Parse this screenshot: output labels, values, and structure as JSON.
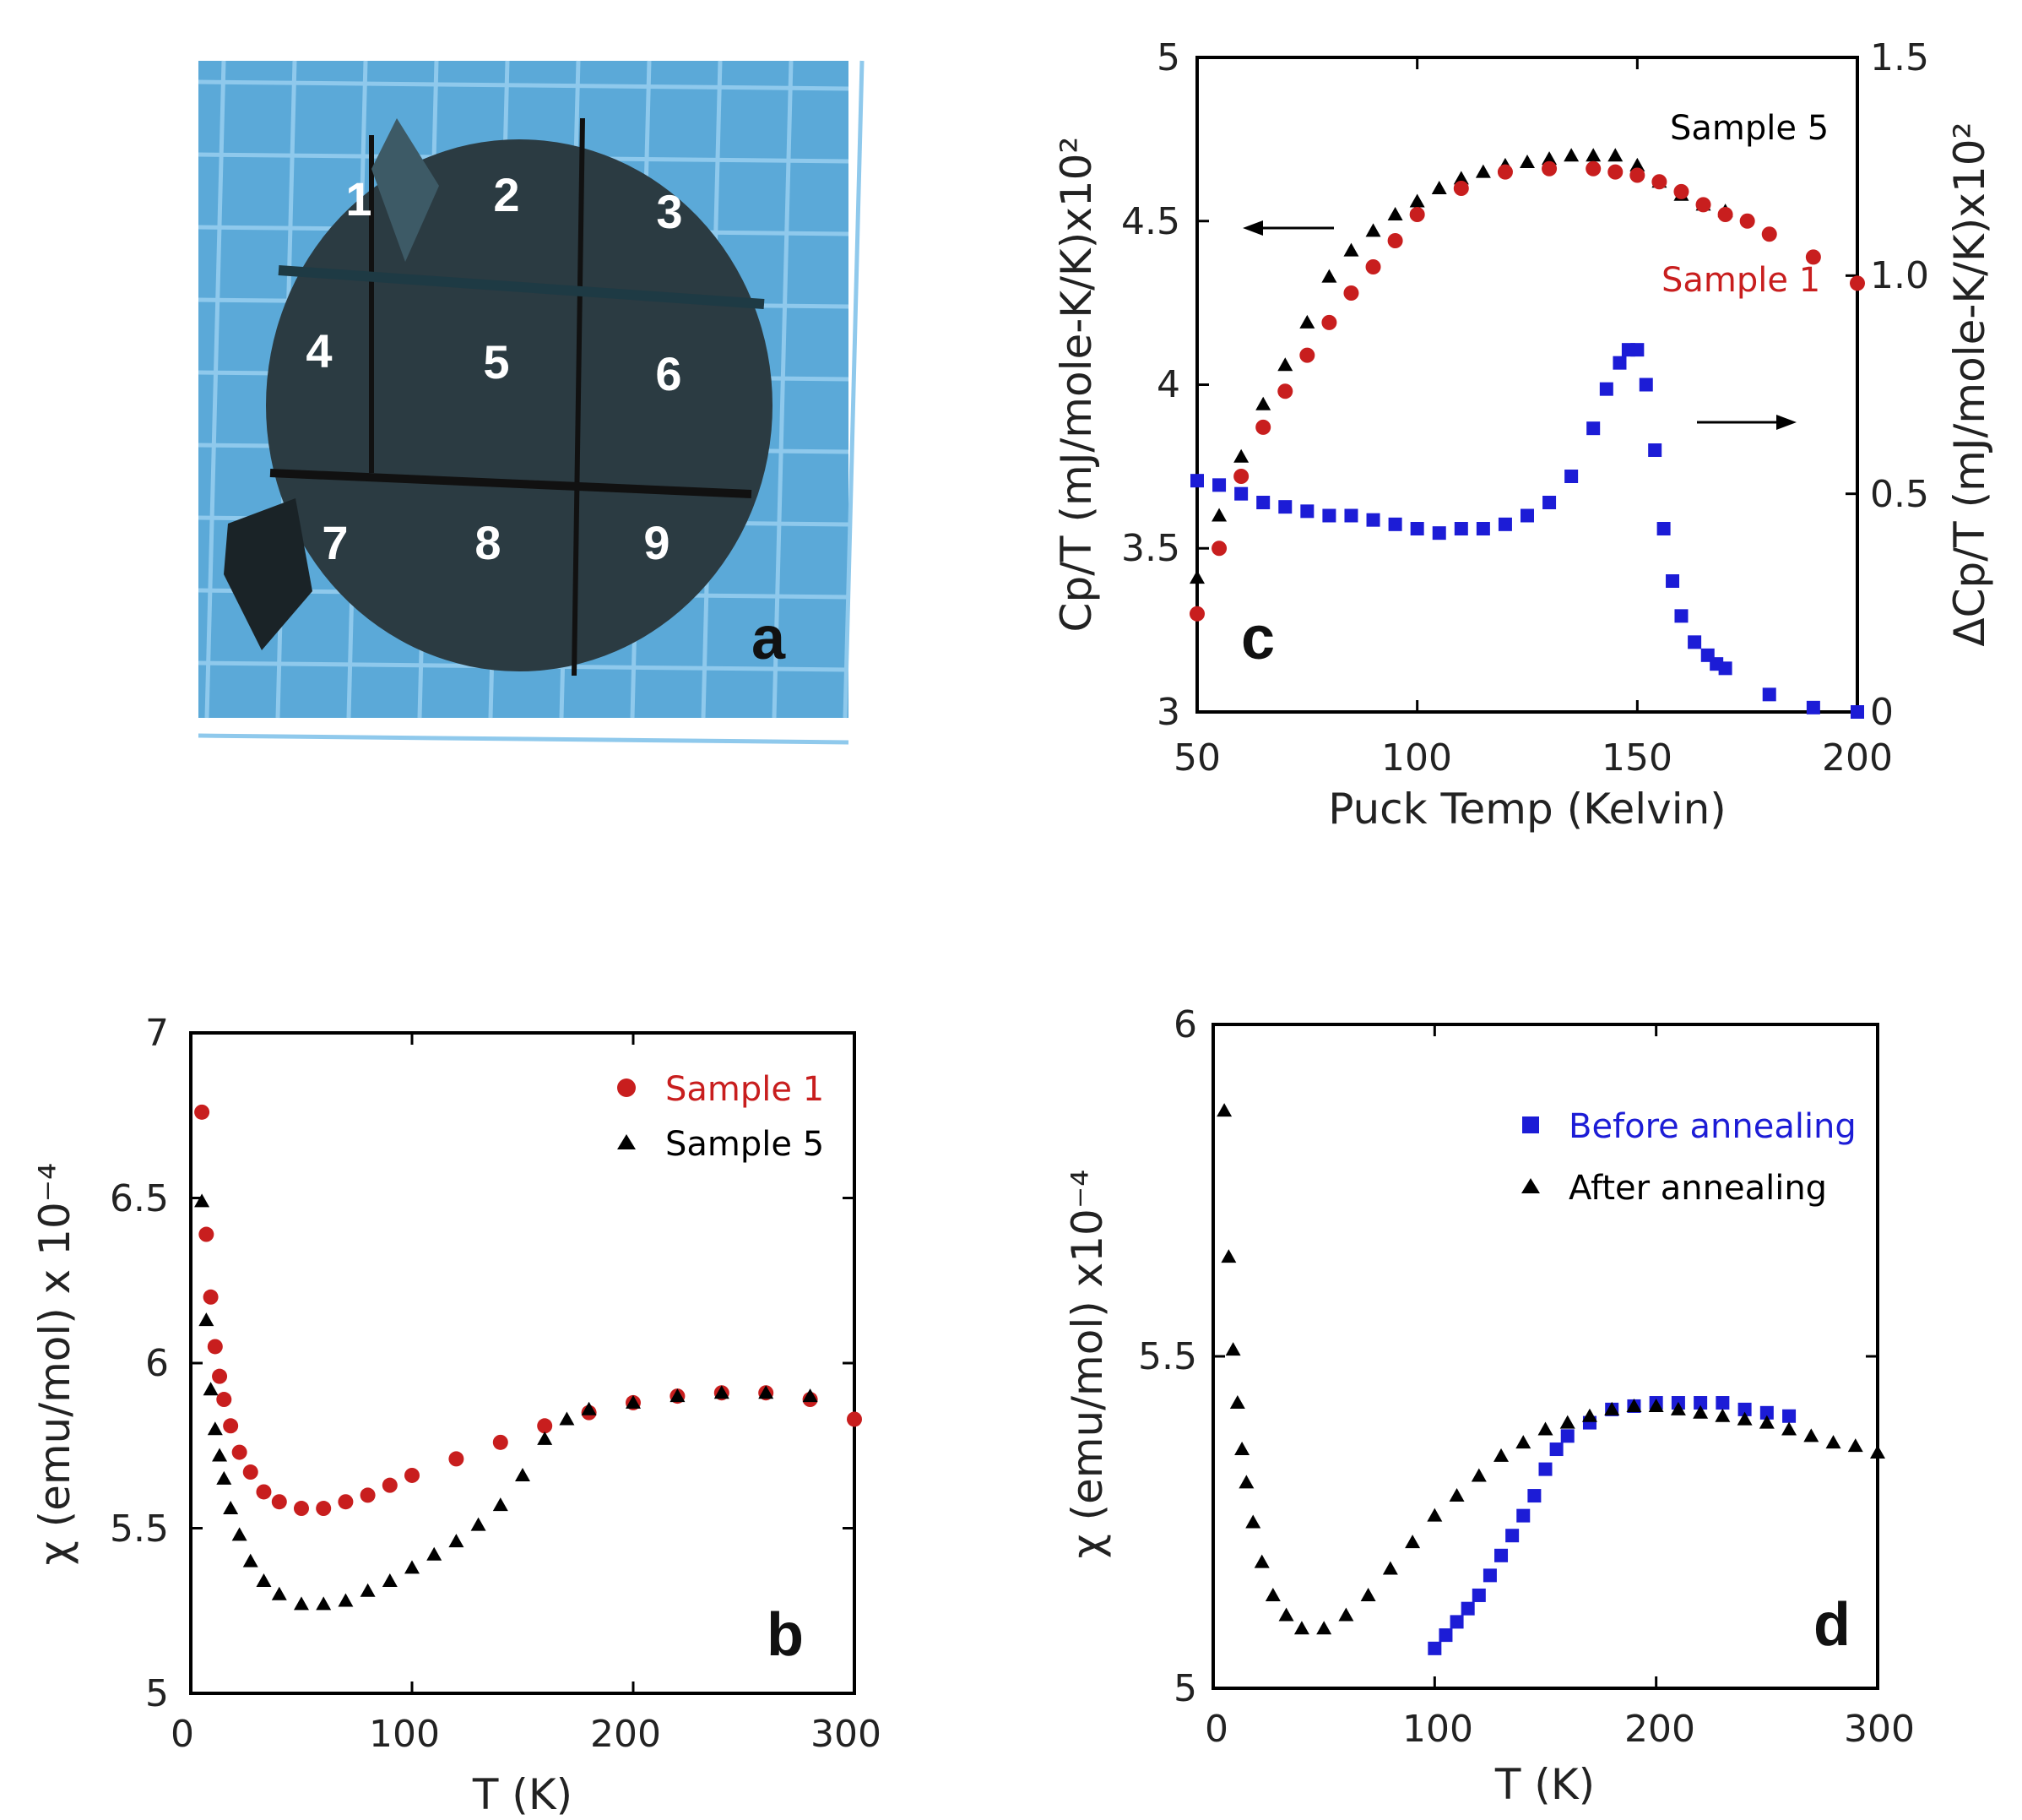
{
  "photo": {
    "numbers": [
      "1",
      "2",
      "3",
      "4",
      "5",
      "6",
      "7",
      "8",
      "9"
    ],
    "label": "a",
    "colors": {
      "background": "#5ba9d8",
      "grid": "#8fc9ec",
      "sample": "#2b3b42"
    }
  },
  "colors": {
    "red": "#c81e1e",
    "blue": "#1c1cd6",
    "black": "#000000"
  },
  "chart_data": [
    {
      "panel": "c",
      "type": "scatter",
      "xlabel": "Puck Temp (Kelvin)",
      "ylabel": "Cp/T (mJ/mole-K/K)x10²",
      "y2label": "ΔCp/T (mJ/mole-K/K)x10²",
      "xlim": [
        50,
        200
      ],
      "ylim": [
        3,
        5
      ],
      "y2lim": [
        0,
        1.5
      ],
      "xticks": [
        "50",
        "100",
        "150",
        "200"
      ],
      "yticks": [
        "3",
        "3.5",
        "4",
        "4.5",
        "5"
      ],
      "y2ticks": [
        "0",
        "0.5",
        "1.0",
        "1.5"
      ],
      "annotations": [
        "Sample 5",
        "Sample 1"
      ],
      "series": [
        {
          "name": "Sample 5",
          "marker": "triangle",
          "color": "#000000",
          "axis": "left",
          "x": [
            50,
            55,
            60,
            65,
            70,
            75,
            80,
            85,
            90,
            95,
            100,
            105,
            110,
            115,
            120,
            125,
            130,
            135,
            140,
            145,
            150,
            155,
            160,
            165,
            170
          ],
          "y": [
            3.41,
            3.6,
            3.78,
            3.94,
            4.06,
            4.19,
            4.33,
            4.41,
            4.47,
            4.52,
            4.56,
            4.6,
            4.63,
            4.65,
            4.67,
            4.68,
            4.69,
            4.7,
            4.7,
            4.7,
            4.67,
            4.62,
            4.58,
            4.55,
            4.53
          ]
        },
        {
          "name": "Sample 1",
          "marker": "circle",
          "color": "#c81e1e",
          "axis": "left",
          "x": [
            50,
            55,
            60,
            65,
            70,
            75,
            80,
            85,
            90,
            95,
            100,
            110,
            120,
            130,
            140,
            145,
            150,
            155,
            160,
            165,
            170,
            175,
            180,
            190,
            200
          ],
          "y": [
            3.3,
            3.5,
            3.72,
            3.87,
            3.98,
            4.09,
            4.19,
            4.28,
            4.36,
            4.44,
            4.52,
            4.6,
            4.65,
            4.66,
            4.66,
            4.65,
            4.64,
            4.62,
            4.59,
            4.55,
            4.52,
            4.5,
            4.46,
            4.39,
            4.31
          ]
        },
        {
          "name": "",
          "marker": "square",
          "color": "#1c1cd6",
          "axis": "right",
          "x": [
            50,
            55,
            60,
            65,
            70,
            75,
            80,
            85,
            90,
            95,
            100,
            105,
            110,
            115,
            120,
            125,
            130,
            135,
            140,
            143,
            146,
            148,
            150,
            152,
            154,
            156,
            158,
            160,
            163,
            166,
            168,
            170,
            180,
            190,
            200
          ],
          "y": [
            0.53,
            0.52,
            0.5,
            0.48,
            0.47,
            0.46,
            0.45,
            0.45,
            0.44,
            0.43,
            0.42,
            0.41,
            0.42,
            0.42,
            0.43,
            0.45,
            0.48,
            0.54,
            0.65,
            0.74,
            0.8,
            0.83,
            0.83,
            0.75,
            0.6,
            0.42,
            0.3,
            0.22,
            0.16,
            0.13,
            0.11,
            0.1,
            0.04,
            0.01,
            0.0
          ]
        }
      ]
    },
    {
      "panel": "b",
      "type": "scatter",
      "xlabel": "T (K)",
      "ylabel": "χ (emu/mol) x 10⁻⁴",
      "xlim": [
        0,
        300
      ],
      "ylim": [
        5,
        7
      ],
      "xticks": [
        "0",
        "100",
        "200",
        "300"
      ],
      "yticks": [
        "5",
        "5.5",
        "6",
        "6.5",
        "7"
      ],
      "series": [
        {
          "name": "Sample 1",
          "marker": "circle",
          "color": "#c81e1e",
          "x": [
            5,
            7,
            9,
            11,
            13,
            15,
            18,
            22,
            27,
            33,
            40,
            50,
            60,
            70,
            80,
            90,
            100,
            120,
            140,
            160,
            180,
            200,
            220,
            240,
            260,
            280,
            300
          ],
          "y": [
            6.76,
            6.39,
            6.2,
            6.05,
            5.96,
            5.89,
            5.81,
            5.73,
            5.67,
            5.61,
            5.58,
            5.56,
            5.56,
            5.58,
            5.6,
            5.63,
            5.66,
            5.71,
            5.76,
            5.81,
            5.85,
            5.88,
            5.9,
            5.91,
            5.91,
            5.89,
            5.83
          ]
        },
        {
          "name": "Sample 5",
          "marker": "triangle",
          "color": "#000000",
          "x": [
            5,
            7,
            9,
            11,
            13,
            15,
            18,
            22,
            27,
            33,
            40,
            50,
            60,
            70,
            80,
            90,
            100,
            110,
            120,
            130,
            140,
            150,
            160,
            170,
            180,
            200,
            220,
            240,
            260,
            280
          ],
          "y": [
            6.49,
            6.13,
            5.92,
            5.8,
            5.72,
            5.65,
            5.56,
            5.48,
            5.4,
            5.34,
            5.3,
            5.27,
            5.27,
            5.28,
            5.31,
            5.34,
            5.38,
            5.42,
            5.46,
            5.51,
            5.57,
            5.66,
            5.77,
            5.83,
            5.86,
            5.88,
            5.9,
            5.91,
            5.91,
            5.9
          ]
        }
      ]
    },
    {
      "panel": "d",
      "type": "scatter",
      "xlabel": "T (K)",
      "ylabel": "χ (emu/mol) x10⁻⁴",
      "xlim": [
        0,
        300
      ],
      "ylim": [
        5,
        6
      ],
      "xticks": [
        "0",
        "100",
        "200",
        "300"
      ],
      "yticks": [
        "5",
        "5.5",
        "6"
      ],
      "series": [
        {
          "name": "Before annealing",
          "marker": "square",
          "color": "#1c1cd6",
          "x": [
            100,
            105,
            110,
            115,
            120,
            125,
            130,
            135,
            140,
            145,
            150,
            155,
            160,
            170,
            180,
            190,
            200,
            210,
            220,
            230,
            240,
            250,
            260
          ],
          "y": [
            5.06,
            5.08,
            5.1,
            5.12,
            5.14,
            5.17,
            5.2,
            5.23,
            5.26,
            5.29,
            5.33,
            5.36,
            5.38,
            5.4,
            5.42,
            5.425,
            5.43,
            5.43,
            5.43,
            5.43,
            5.42,
            5.415,
            5.41
          ]
        },
        {
          "name": "After annealing",
          "marker": "triangle",
          "color": "#000000",
          "x": [
            5,
            7,
            9,
            11,
            13,
            15,
            18,
            22,
            27,
            33,
            40,
            50,
            60,
            70,
            80,
            90,
            100,
            110,
            120,
            130,
            140,
            150,
            160,
            170,
            180,
            190,
            200,
            210,
            220,
            230,
            240,
            250,
            260,
            270,
            280,
            290,
            300
          ],
          "y": [
            5.87,
            5.65,
            5.51,
            5.43,
            5.36,
            5.31,
            5.25,
            5.19,
            5.14,
            5.11,
            5.09,
            5.09,
            5.11,
            5.14,
            5.18,
            5.22,
            5.26,
            5.29,
            5.32,
            5.35,
            5.37,
            5.39,
            5.4,
            5.41,
            5.42,
            5.425,
            5.425,
            5.42,
            5.415,
            5.41,
            5.405,
            5.4,
            5.39,
            5.38,
            5.37,
            5.365,
            5.355
          ]
        }
      ]
    }
  ]
}
